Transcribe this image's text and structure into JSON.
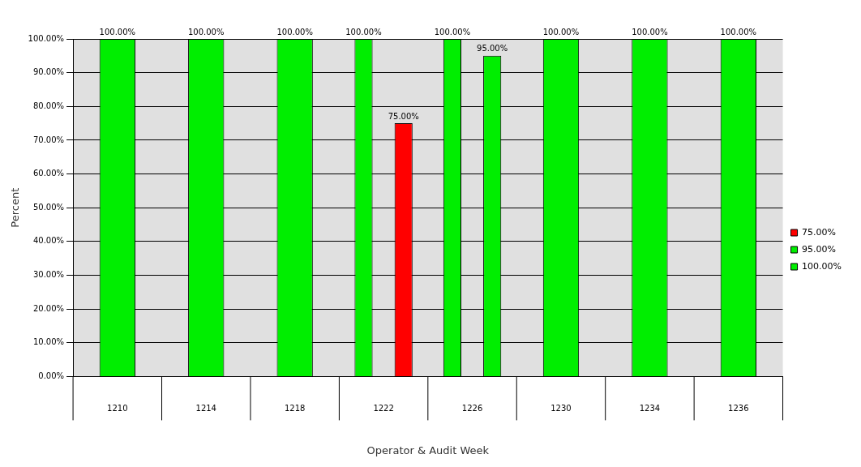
{
  "chart_data": {
    "type": "bar",
    "xlabel": "Operator & Audit Week",
    "ylabel": "Percent",
    "categories": [
      "1210",
      "1214",
      "1218",
      "1222",
      "1226",
      "1230",
      "1234",
      "1236"
    ],
    "series": [
      {
        "name": "75.00%",
        "color": "#ff0000",
        "values": [
          null,
          null,
          null,
          75,
          null,
          null,
          null,
          null
        ],
        "value_labels": [
          null,
          null,
          null,
          "75.00%",
          null,
          null,
          null,
          null
        ]
      },
      {
        "name": "95.00%",
        "color": "#00ee00",
        "values": [
          null,
          null,
          null,
          null,
          95,
          null,
          null,
          null
        ],
        "value_labels": [
          null,
          null,
          null,
          null,
          "95.00%",
          null,
          null,
          null
        ]
      },
      {
        "name": "100.00%",
        "color": "#00ee00",
        "values": [
          100,
          100,
          100,
          100,
          100,
          100,
          100,
          100
        ],
        "value_labels": [
          "100.00%",
          "100.00%",
          "100.00%",
          "100.00%",
          "100.00%",
          "100.00%",
          "100.00%",
          "100.00%"
        ]
      }
    ],
    "ylim": [
      0,
      100
    ],
    "yticks": [
      {
        "value": 0,
        "label": "0.00%"
      },
      {
        "value": 10,
        "label": "10.00%"
      },
      {
        "value": 20,
        "label": "20.00%"
      },
      {
        "value": 30,
        "label": "30.00%"
      },
      {
        "value": 40,
        "label": "40.00%"
      },
      {
        "value": 50,
        "label": "50.00%"
      },
      {
        "value": 60,
        "label": "60.00%"
      },
      {
        "value": 70,
        "label": "70.00%"
      },
      {
        "value": 80,
        "label": "80.00%"
      },
      {
        "value": 90,
        "label": "90.00%"
      },
      {
        "value": 100,
        "label": "100.00%"
      }
    ],
    "grid": "y",
    "legend": "right"
  }
}
